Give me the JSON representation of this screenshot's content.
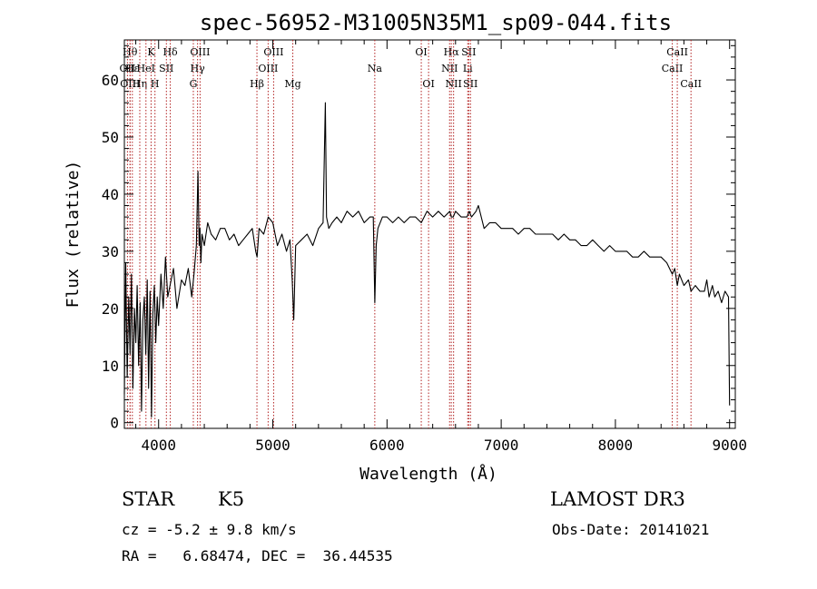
{
  "chart_data": {
    "type": "line",
    "title": "spec-56952-M31005N35M1_sp09-044.fits",
    "xlabel": "Wavelength (Å)",
    "ylabel": "Flux (relative)",
    "xlim": [
      3700,
      9050
    ],
    "ylim": [
      -1,
      67
    ],
    "xticks": [
      4000,
      5000,
      6000,
      7000,
      8000,
      9000
    ],
    "xtick_labels": [
      "4000",
      "5000",
      "6000",
      "7000",
      "8000",
      "9000"
    ],
    "yticks": [
      0,
      10,
      20,
      30,
      40,
      50,
      60
    ],
    "ytick_labels": [
      "0",
      "10",
      "20",
      "30",
      "40",
      "50",
      "60"
    ],
    "series": [
      {
        "name": "spectrum",
        "x": [
          3700,
          3712,
          3725,
          3738,
          3750,
          3762,
          3775,
          3788,
          3800,
          3812,
          3825,
          3838,
          3850,
          3862,
          3875,
          3888,
          3900,
          3912,
          3925,
          3938,
          3950,
          3962,
          3975,
          3988,
          4000,
          4020,
          4040,
          4060,
          4080,
          4100,
          4130,
          4160,
          4200,
          4230,
          4260,
          4290,
          4310,
          4330,
          4345,
          4355,
          4362,
          4370,
          4380,
          4400,
          4430,
          4460,
          4500,
          4540,
          4580,
          4620,
          4660,
          4700,
          4740,
          4780,
          4820,
          4850,
          4862,
          4880,
          4920,
          4960,
          5000,
          5040,
          5080,
          5120,
          5150,
          5170,
          5183,
          5200,
          5250,
          5300,
          5350,
          5400,
          5440,
          5460,
          5470,
          5490,
          5520,
          5560,
          5600,
          5650,
          5700,
          5750,
          5800,
          5850,
          5880,
          5893,
          5905,
          5920,
          5960,
          6000,
          6050,
          6100,
          6150,
          6200,
          6250,
          6300,
          6350,
          6400,
          6450,
          6500,
          6550,
          6563,
          6580,
          6600,
          6650,
          6700,
          6720,
          6740,
          6780,
          6800,
          6850,
          6900,
          6950,
          7000,
          7050,
          7100,
          7150,
          7200,
          7250,
          7300,
          7350,
          7400,
          7450,
          7500,
          7550,
          7600,
          7650,
          7700,
          7750,
          7800,
          7850,
          7900,
          7950,
          8000,
          8050,
          8100,
          8150,
          8200,
          8250,
          8300,
          8350,
          8400,
          8450,
          8498,
          8520,
          8542,
          8560,
          8600,
          8640,
          8662,
          8700,
          8740,
          8780,
          8800,
          8820,
          8850,
          8870,
          8900,
          8930,
          8960,
          8990,
          9000
        ],
        "y": [
          5,
          28,
          8,
          22,
          12,
          26,
          6,
          20,
          14,
          24,
          10,
          21,
          2,
          18,
          22,
          12,
          25,
          6,
          23,
          1,
          19,
          24,
          14,
          22,
          17,
          26,
          20,
          29,
          22,
          24,
          27,
          20,
          25,
          24,
          27,
          22,
          26,
          31,
          44,
          31,
          34,
          28,
          33,
          31,
          35,
          33,
          32,
          34,
          34,
          32,
          33,
          31,
          32,
          33,
          34,
          30,
          29,
          34,
          33,
          36,
          35,
          31,
          33,
          30,
          32,
          25,
          18,
          31,
          32,
          33,
          31,
          34,
          35,
          56,
          36,
          34,
          35,
          36,
          35,
          37,
          36,
          37,
          35,
          36,
          36,
          21,
          31,
          34,
          36,
          36,
          35,
          36,
          35,
          36,
          36,
          35,
          37,
          36,
          37,
          36,
          37,
          36,
          36,
          37,
          36,
          36,
          37,
          36,
          37,
          38,
          34,
          35,
          35,
          34,
          34,
          34,
          33,
          34,
          34,
          33,
          33,
          33,
          33,
          32,
          33,
          32,
          32,
          31,
          31,
          32,
          31,
          30,
          31,
          30,
          30,
          30,
          29,
          29,
          30,
          29,
          29,
          29,
          28,
          26,
          27,
          24,
          26,
          24,
          25,
          23,
          24,
          23,
          23,
          25,
          22,
          24,
          22,
          23,
          21,
          23,
          22,
          3
        ]
      }
    ],
    "line_markers": [
      {
        "wave": 3727,
        "label": "OII",
        "row": 1
      },
      {
        "wave": 3750,
        "label": "Hθ",
        "row": 0
      },
      {
        "wave": 3750,
        "label": "OIII",
        "row": 2
      },
      {
        "wave": 3770,
        "label": "Hε",
        "row": 1
      },
      {
        "wave": 3835,
        "label": "Hη",
        "row": 2
      },
      {
        "wave": 3889,
        "label": "HeI",
        "row": 1
      },
      {
        "wave": 3934,
        "label": "K",
        "row": 0
      },
      {
        "wave": 3968,
        "label": "H",
        "row": 2
      },
      {
        "wave": 4068,
        "label": "SII",
        "row": 1
      },
      {
        "wave": 4102,
        "label": "Hδ",
        "row": 0
      },
      {
        "wave": 4304,
        "label": "G",
        "row": 2
      },
      {
        "wave": 4341,
        "label": "Hγ",
        "row": 1
      },
      {
        "wave": 4363,
        "label": "OIII",
        "row": 0
      },
      {
        "wave": 4861,
        "label": "Hβ",
        "row": 2
      },
      {
        "wave": 4959,
        "label": "OIII",
        "row": 1
      },
      {
        "wave": 5007,
        "label": "OIII",
        "row": 0
      },
      {
        "wave": 5175,
        "label": "Mg",
        "row": 2
      },
      {
        "wave": 5893,
        "label": "Na",
        "row": 1
      },
      {
        "wave": 6300,
        "label": "OI",
        "row": 0
      },
      {
        "wave": 6364,
        "label": "OI",
        "row": 2
      },
      {
        "wave": 6548,
        "label": "NII",
        "row": 1
      },
      {
        "wave": 6563,
        "label": "Hα",
        "row": 0
      },
      {
        "wave": 6583,
        "label": "NII",
        "row": 2
      },
      {
        "wave": 6707,
        "label": "Li",
        "row": 1
      },
      {
        "wave": 6716,
        "label": "SII",
        "row": 0
      },
      {
        "wave": 6731,
        "label": "SII",
        "row": 2
      },
      {
        "wave": 8498,
        "label": "CaII",
        "row": 1
      },
      {
        "wave": 8542,
        "label": "CaII",
        "row": 0
      },
      {
        "wave": 8662,
        "label": "CaII",
        "row": 2
      }
    ],
    "line_color": "#b22222"
  },
  "info": {
    "class": "STAR",
    "subclass": "K5",
    "survey": "LAMOST DR3",
    "cz": "cz = -5.2 ± 9.8 km/s",
    "obs_date": "Obs-Date: 20141021",
    "coords": "RA =   6.68474, DEC =  36.44535"
  }
}
